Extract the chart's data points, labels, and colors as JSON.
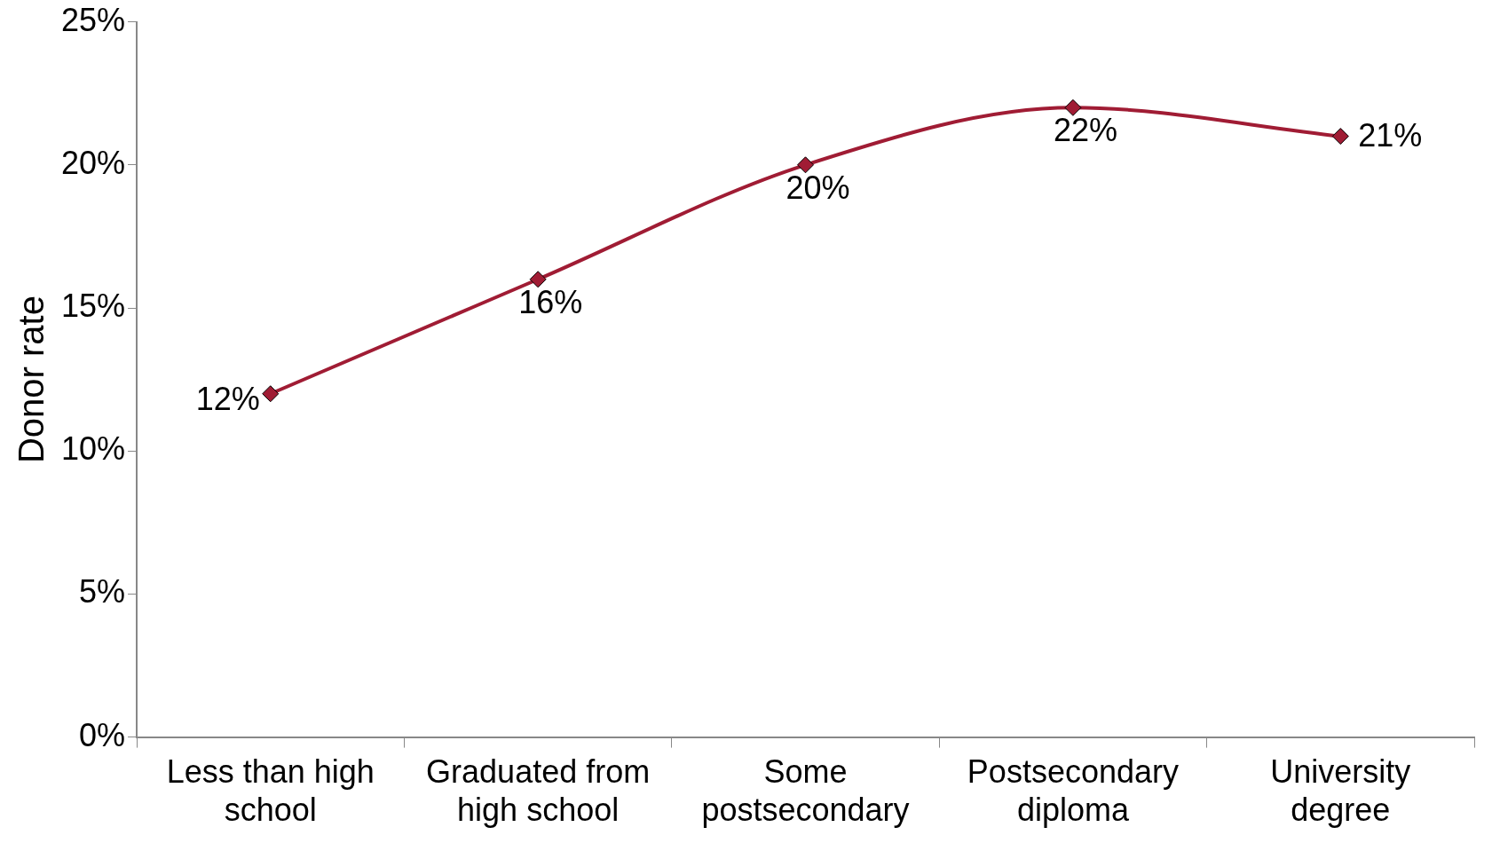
{
  "chart_data": {
    "type": "line",
    "ylabel": "Donor rate",
    "categories": [
      "Less than high school",
      "Graduated from high school",
      "Some postsecondary",
      "Postsecondary diploma",
      "University degree"
    ],
    "series": [
      {
        "color": "#a01c34",
        "values": [
          12,
          16,
          20,
          22,
          21
        ],
        "value_labels": [
          "12%",
          "16%",
          "20%",
          "22%",
          "21%"
        ]
      }
    ],
    "ylim": [
      0,
      25
    ],
    "yticks": [
      {
        "value": 0,
        "label": "0%"
      },
      {
        "value": 5,
        "label": "5%"
      },
      {
        "value": 10,
        "label": "10%"
      },
      {
        "value": 15,
        "label": "15%"
      },
      {
        "value": 20,
        "label": "20%"
      },
      {
        "value": 25,
        "label": "25%"
      }
    ],
    "grid": false,
    "legend": false,
    "marker": "diamond",
    "line_style": "solid"
  }
}
